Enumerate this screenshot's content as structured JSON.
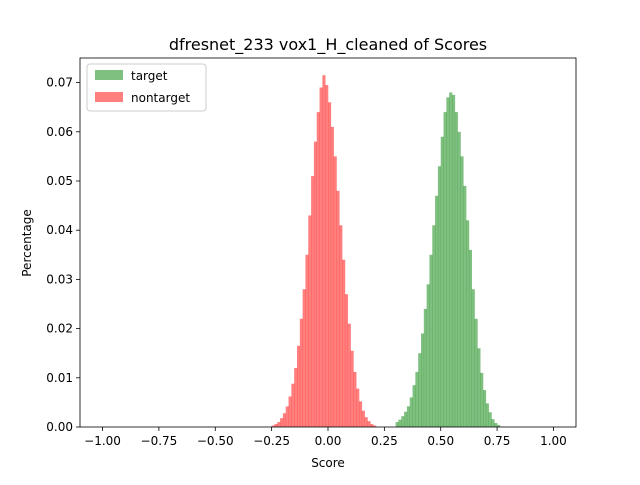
{
  "chart_data": {
    "type": "histogram",
    "title": "dfresnet_233 vox1_H_cleaned of Scores",
    "xlabel": "Score",
    "ylabel": "Percentage",
    "xlim": [
      -1.1,
      1.1
    ],
    "ylim": [
      0,
      0.075
    ],
    "bin_width": 0.0125,
    "x_ticks": [
      -1.0,
      -0.75,
      -0.5,
      -0.25,
      0.0,
      0.25,
      0.5,
      0.75,
      1.0
    ],
    "x_tick_labels": [
      "−1.00",
      "−0.75",
      "−0.50",
      "−0.25",
      "0.00",
      "0.25",
      "0.50",
      "0.75",
      "1.00"
    ],
    "y_ticks": [
      0,
      0.01,
      0.02,
      0.03,
      0.04,
      0.05,
      0.06,
      0.07
    ],
    "y_tick_labels": [
      "0.00",
      "0.01",
      "0.02",
      "0.03",
      "0.04",
      "0.05",
      "0.06",
      "0.07"
    ],
    "grid": false,
    "legend_position": "top-left",
    "series": [
      {
        "name": "target",
        "color": "#008000",
        "alpha": 0.5,
        "bins": {
          "start": 0.3,
          "values": [
            0.001,
            0.0015,
            0.0022,
            0.0031,
            0.0042,
            0.006,
            0.0085,
            0.0112,
            0.015,
            0.019,
            0.024,
            0.029,
            0.035,
            0.041,
            0.047,
            0.053,
            0.059,
            0.064,
            0.067,
            0.068,
            0.0675,
            0.064,
            0.06,
            0.055,
            0.049,
            0.042,
            0.036,
            0.028,
            0.022,
            0.016,
            0.011,
            0.0075,
            0.0048,
            0.003,
            0.0016,
            0.0008,
            0.0004
          ]
        }
      },
      {
        "name": "nontarget",
        "color": "#ff0000",
        "alpha": 0.5,
        "bins": {
          "start": -0.25,
          "values": [
            0.0003,
            0.0006,
            0.001,
            0.0018,
            0.0028,
            0.0042,
            0.0062,
            0.0088,
            0.012,
            0.0165,
            0.022,
            0.028,
            0.035,
            0.043,
            0.051,
            0.058,
            0.064,
            0.069,
            0.0715,
            0.0695,
            0.066,
            0.061,
            0.055,
            0.048,
            0.041,
            0.034,
            0.027,
            0.021,
            0.0155,
            0.0112,
            0.0078,
            0.0052,
            0.0033,
            0.002,
            0.0012,
            0.0006,
            0.0003
          ]
        }
      }
    ]
  }
}
